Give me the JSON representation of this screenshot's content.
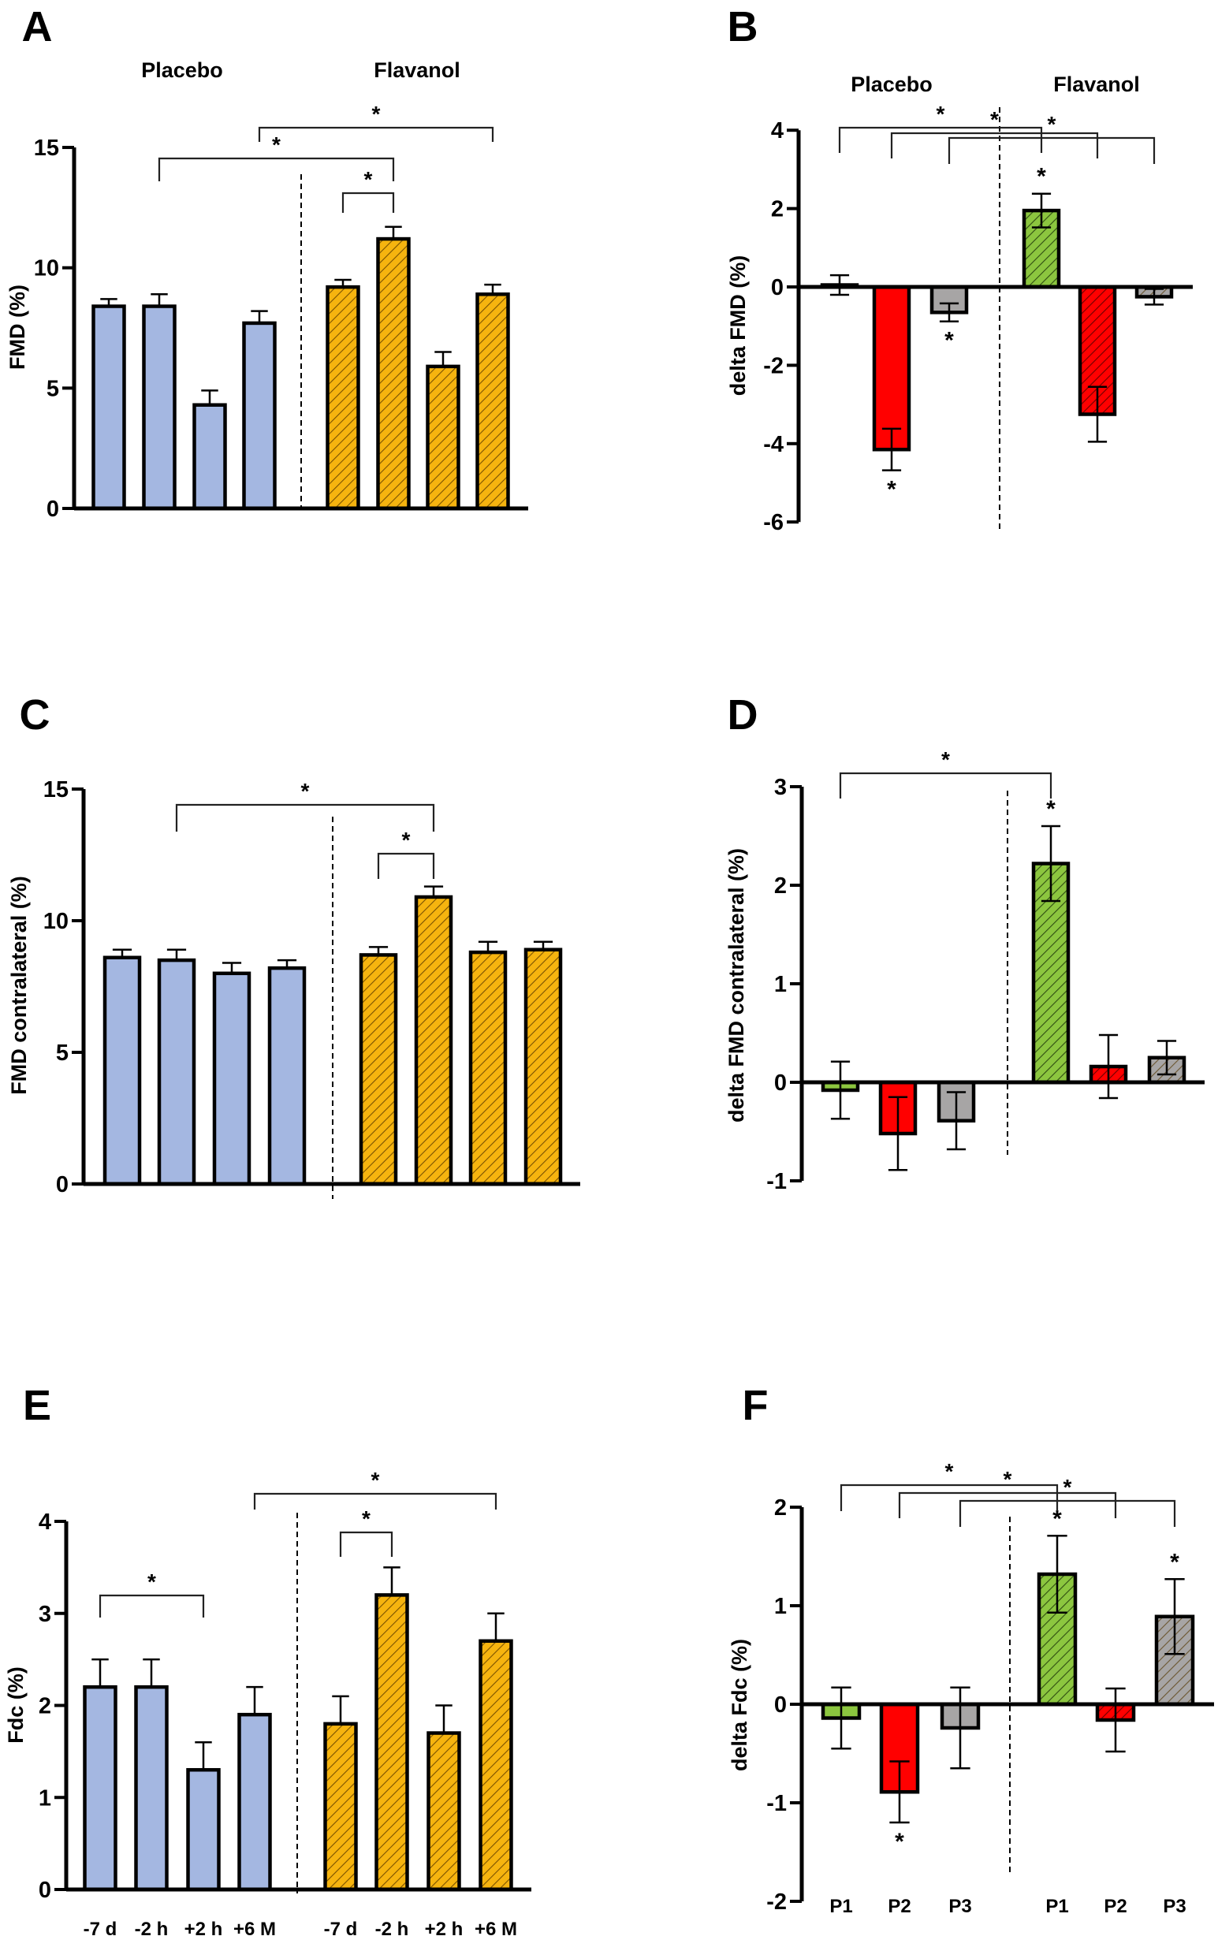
{
  "colors": {
    "placebo_blue": "#a4b7e1",
    "flavanol_orange": "#f6b40f",
    "green": "#8cc63f",
    "red": "#ff0000",
    "gray": "#a7a5a5",
    "axis": "#000000"
  },
  "chart_data": [
    {
      "panel": "A",
      "type": "bar",
      "ylabel": "FMD (%)",
      "group_labels": [
        "Placebo",
        "Flavanol"
      ],
      "categories": [
        "",
        "",
        "",
        "",
        "",
        "",
        "",
        ""
      ],
      "ylim": [
        0,
        15
      ],
      "yticks": [
        0,
        5,
        10,
        15
      ],
      "grid": false,
      "error_style": "upper",
      "bars": [
        {
          "group": "Placebo",
          "value": 8.4,
          "error": 0.3,
          "color": "#a4b7e1",
          "hatched": false,
          "mark": ""
        },
        {
          "group": "Placebo",
          "value": 8.4,
          "error": 0.5,
          "color": "#a4b7e1",
          "hatched": false,
          "mark": ""
        },
        {
          "group": "Placebo",
          "value": 4.3,
          "error": 0.6,
          "color": "#a4b7e1",
          "hatched": false,
          "mark": ""
        },
        {
          "group": "Placebo",
          "value": 7.7,
          "error": 0.5,
          "color": "#a4b7e1",
          "hatched": false,
          "mark": ""
        },
        {
          "group": "Flavanol",
          "value": 9.2,
          "error": 0.3,
          "color": "#f6b40f",
          "hatched": true,
          "mark": ""
        },
        {
          "group": "Flavanol",
          "value": 11.2,
          "error": 0.5,
          "color": "#f6b40f",
          "hatched": true,
          "mark": ""
        },
        {
          "group": "Flavanol",
          "value": 5.9,
          "error": 0.6,
          "color": "#f6b40f",
          "hatched": true,
          "mark": ""
        },
        {
          "group": "Flavanol",
          "value": 8.9,
          "error": 0.4,
          "color": "#f6b40f",
          "hatched": true,
          "mark": ""
        }
      ],
      "brackets": [
        {
          "from": 1,
          "to": 5,
          "label": "*"
        },
        {
          "from": 3,
          "to": 7,
          "label": "*"
        },
        {
          "from": 4,
          "to": 5,
          "label": "*"
        }
      ]
    },
    {
      "panel": "B",
      "type": "bar",
      "ylabel": "delta FMD (%)",
      "group_labels": [
        "Placebo",
        "Flavanol"
      ],
      "categories": [
        "",
        "",
        "",
        "",
        "",
        ""
      ],
      "ylim": [
        -6,
        4
      ],
      "yticks": [
        -6,
        -4,
        -2,
        0,
        2,
        4
      ],
      "grid": false,
      "error_style": "both",
      "bars": [
        {
          "group": "Placebo",
          "value": 0.05,
          "error": 0.25,
          "color": "#8cc63f",
          "hatched": false,
          "mark": ""
        },
        {
          "group": "Placebo",
          "value": -4.15,
          "error": 0.53,
          "color": "#ff0000",
          "hatched": false,
          "mark": "*"
        },
        {
          "group": "Placebo",
          "value": -0.65,
          "error": 0.23,
          "color": "#a7a5a5",
          "hatched": false,
          "mark": "*"
        },
        {
          "group": "Flavanol",
          "value": 1.95,
          "error": 0.43,
          "color": "#8cc63f",
          "hatched": true,
          "mark": "*"
        },
        {
          "group": "Flavanol",
          "value": -3.25,
          "error": 0.7,
          "color": "#ff0000",
          "hatched": true,
          "mark": ""
        },
        {
          "group": "Flavanol",
          "value": -0.25,
          "error": 0.2,
          "color": "#a7a5a5",
          "hatched": true,
          "mark": ""
        }
      ],
      "brackets": [
        {
          "from": 0,
          "to": 3,
          "label": "*"
        },
        {
          "from": 1,
          "to": 4,
          "label": "*"
        },
        {
          "from": 2,
          "to": 5,
          "label": "*"
        }
      ]
    },
    {
      "panel": "C",
      "type": "bar",
      "ylabel": "FMD contralateral (%)",
      "group_labels": [],
      "categories": [
        "",
        "",
        "",
        "",
        "",
        "",
        "",
        ""
      ],
      "ylim": [
        0,
        15
      ],
      "yticks": [
        0,
        5,
        10,
        15
      ],
      "grid": false,
      "error_style": "upper",
      "bars": [
        {
          "group": "Placebo",
          "value": 8.6,
          "error": 0.3,
          "color": "#a4b7e1",
          "hatched": false,
          "mark": ""
        },
        {
          "group": "Placebo",
          "value": 8.5,
          "error": 0.4,
          "color": "#a4b7e1",
          "hatched": false,
          "mark": ""
        },
        {
          "group": "Placebo",
          "value": 8.0,
          "error": 0.4,
          "color": "#a4b7e1",
          "hatched": false,
          "mark": ""
        },
        {
          "group": "Placebo",
          "value": 8.2,
          "error": 0.3,
          "color": "#a4b7e1",
          "hatched": false,
          "mark": ""
        },
        {
          "group": "Flavanol",
          "value": 8.7,
          "error": 0.3,
          "color": "#f6b40f",
          "hatched": true,
          "mark": ""
        },
        {
          "group": "Flavanol",
          "value": 10.9,
          "error": 0.4,
          "color": "#f6b40f",
          "hatched": true,
          "mark": ""
        },
        {
          "group": "Flavanol",
          "value": 8.8,
          "error": 0.4,
          "color": "#f6b40f",
          "hatched": true,
          "mark": ""
        },
        {
          "group": "Flavanol",
          "value": 8.9,
          "error": 0.3,
          "color": "#f6b40f",
          "hatched": true,
          "mark": ""
        }
      ],
      "brackets": [
        {
          "from": 1,
          "to": 5,
          "label": "*"
        },
        {
          "from": 4,
          "to": 5,
          "label": "*"
        }
      ]
    },
    {
      "panel": "D",
      "type": "bar",
      "ylabel": "delta FMD contralateral  (%)",
      "group_labels": [],
      "categories": [
        "",
        "",
        "",
        "",
        "",
        ""
      ],
      "ylim": [
        -1,
        3
      ],
      "yticks": [
        -1,
        0,
        1,
        2,
        3
      ],
      "grid": false,
      "error_style": "both",
      "bars": [
        {
          "group": "Placebo",
          "value": -0.08,
          "error": 0.29,
          "color": "#8cc63f",
          "hatched": false,
          "mark": ""
        },
        {
          "group": "Placebo",
          "value": -0.52,
          "error": 0.37,
          "color": "#ff0000",
          "hatched": false,
          "mark": ""
        },
        {
          "group": "Placebo",
          "value": -0.39,
          "error": 0.29,
          "color": "#a7a5a5",
          "hatched": false,
          "mark": ""
        },
        {
          "group": "Flavanol",
          "value": 2.22,
          "error": 0.38,
          "color": "#8cc63f",
          "hatched": true,
          "mark": "*"
        },
        {
          "group": "Flavanol",
          "value": 0.16,
          "error": 0.32,
          "color": "#ff0000",
          "hatched": true,
          "mark": ""
        },
        {
          "group": "Flavanol",
          "value": 0.25,
          "error": 0.17,
          "color": "#a7a5a5",
          "hatched": true,
          "mark": ""
        }
      ],
      "brackets": [
        {
          "from": 0,
          "to": 3,
          "label": "*"
        }
      ]
    },
    {
      "panel": "E",
      "type": "bar",
      "ylabel": "Fdc (%)",
      "group_labels": [],
      "categories": [
        "-7 d",
        "-2 h",
        "+2 h",
        "+6 M",
        "-7 d",
        "-2 h",
        "+2 h",
        "+6 M"
      ],
      "ylim": [
        0,
        4
      ],
      "yticks": [
        0,
        1,
        2,
        3,
        4
      ],
      "grid": false,
      "error_style": "upper",
      "bars": [
        {
          "group": "Placebo",
          "value": 2.2,
          "error": 0.3,
          "color": "#a4b7e1",
          "hatched": false,
          "mark": ""
        },
        {
          "group": "Placebo",
          "value": 2.2,
          "error": 0.3,
          "color": "#a4b7e1",
          "hatched": false,
          "mark": ""
        },
        {
          "group": "Placebo",
          "value": 1.3,
          "error": 0.3,
          "color": "#a4b7e1",
          "hatched": false,
          "mark": ""
        },
        {
          "group": "Placebo",
          "value": 1.9,
          "error": 0.3,
          "color": "#a4b7e1",
          "hatched": false,
          "mark": ""
        },
        {
          "group": "Flavanol",
          "value": 1.8,
          "error": 0.3,
          "color": "#f6b40f",
          "hatched": true,
          "mark": ""
        },
        {
          "group": "Flavanol",
          "value": 3.2,
          "error": 0.3,
          "color": "#f6b40f",
          "hatched": true,
          "mark": ""
        },
        {
          "group": "Flavanol",
          "value": 1.7,
          "error": 0.3,
          "color": "#f6b40f",
          "hatched": true,
          "mark": ""
        },
        {
          "group": "Flavanol",
          "value": 2.7,
          "error": 0.3,
          "color": "#f6b40f",
          "hatched": true,
          "mark": ""
        }
      ],
      "brackets": [
        {
          "from": 0,
          "to": 2,
          "label": "*"
        },
        {
          "from": 3,
          "to": 7,
          "label": "*"
        },
        {
          "from": 4,
          "to": 5,
          "label": "*"
        }
      ]
    },
    {
      "panel": "F",
      "type": "bar",
      "ylabel": "delta Fdc (%)",
      "group_labels": [],
      "categories": [
        "P1",
        "P2",
        "P3",
        "P1",
        "P2",
        "P3"
      ],
      "ylim": [
        -2,
        2
      ],
      "yticks": [
        -2,
        -1,
        0,
        1,
        2
      ],
      "grid": false,
      "error_style": "both",
      "bars": [
        {
          "group": "Placebo",
          "value": -0.14,
          "error": 0.31,
          "color": "#8cc63f",
          "hatched": false,
          "mark": ""
        },
        {
          "group": "Placebo",
          "value": -0.89,
          "error": 0.31,
          "color": "#ff0000",
          "hatched": false,
          "mark": "*"
        },
        {
          "group": "Placebo",
          "value": -0.24,
          "error": 0.41,
          "color": "#a7a5a5",
          "hatched": false,
          "mark": ""
        },
        {
          "group": "Flavanol",
          "value": 1.32,
          "error": 0.39,
          "color": "#8cc63f",
          "hatched": true,
          "mark": "*"
        },
        {
          "group": "Flavanol",
          "value": -0.16,
          "error": 0.32,
          "color": "#ff0000",
          "hatched": true,
          "mark": ""
        },
        {
          "group": "Flavanol",
          "value": 0.89,
          "error": 0.38,
          "color": "#a7a5a5",
          "hatched": true,
          "mark": "*"
        }
      ],
      "brackets": [
        {
          "from": 0,
          "to": 3,
          "label": "*"
        },
        {
          "from": 1,
          "to": 4,
          "label": "*"
        },
        {
          "from": 2,
          "to": 5,
          "label": "*"
        }
      ]
    }
  ]
}
